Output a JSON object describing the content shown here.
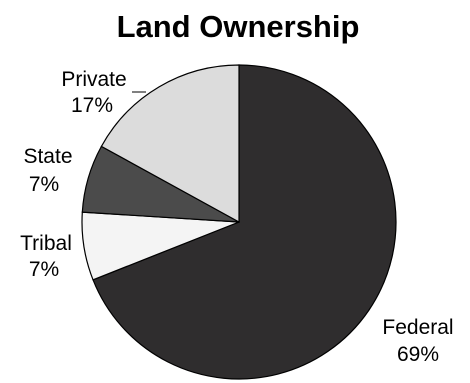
{
  "chart_data": {
    "type": "pie",
    "title": "Land Ownership",
    "start_angle_deg": 0,
    "direction": "clockwise",
    "slices": [
      {
        "label": "Federal",
        "value_label": "69%",
        "value": 69,
        "color": "#2f2d2e"
      },
      {
        "label": "Tribal",
        "value_label": "7%",
        "value": 7,
        "color": "#f4f4f4"
      },
      {
        "label": "State",
        "value_label": "7%",
        "value": 7,
        "color": "#4b4b4b"
      },
      {
        "label": "Private",
        "value_label": "17%",
        "value": 17,
        "color": "#dcdcdc"
      }
    ],
    "legend": "none"
  }
}
